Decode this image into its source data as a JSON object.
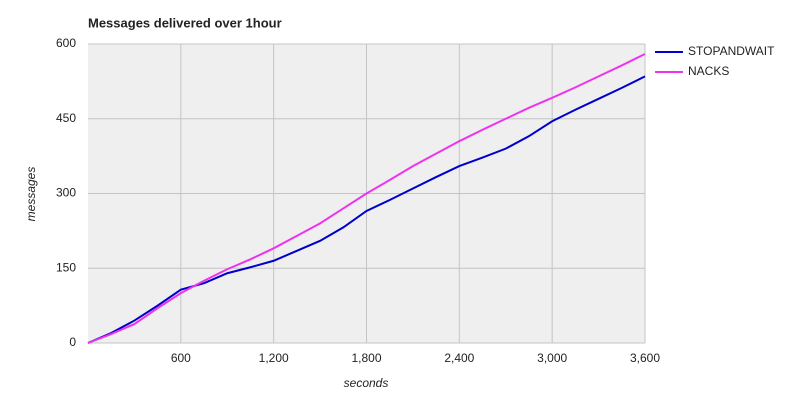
{
  "chart_data": {
    "type": "line",
    "title": "Messages delivered over 1hour",
    "x_label": "seconds",
    "y_label": "messages",
    "x": [
      0,
      150,
      300,
      450,
      600,
      750,
      900,
      1050,
      1200,
      1350,
      1500,
      1650,
      1800,
      1950,
      2100,
      2250,
      2400,
      2550,
      2700,
      2850,
      3000,
      3150,
      3300,
      3450,
      3600
    ],
    "series": [
      {
        "name": "STOPANDWAIT",
        "color": "#0000cc",
        "values": [
          0,
          20,
          45,
          75,
          107,
          120,
          140,
          152,
          165,
          185,
          205,
          232,
          265,
          287,
          310,
          333,
          355,
          372,
          390,
          415,
          445,
          468,
          490,
          512,
          535
        ]
      },
      {
        "name": "NACKS",
        "color": "#ee33ee",
        "values": [
          0,
          18,
          38,
          70,
          100,
          125,
          148,
          168,
          190,
          215,
          240,
          270,
          300,
          327,
          355,
          380,
          405,
          428,
          450,
          472,
          492,
          513,
          535,
          557,
          580
        ]
      }
    ],
    "xlim": [
      0,
      3600
    ],
    "xticks": [
      600,
      {
        "value": 1200,
        "label": "1,200"
      },
      {
        "value": 1800,
        "label": "1,800"
      },
      {
        "value": 2400,
        "label": "2,400"
      },
      {
        "value": 3000,
        "label": "3,000"
      },
      {
        "value": 3600,
        "label": "3,600"
      }
    ],
    "ylim": [
      0,
      600
    ],
    "yticks": [
      0,
      150,
      300,
      450,
      600
    ],
    "grid": true,
    "legend": "right"
  }
}
